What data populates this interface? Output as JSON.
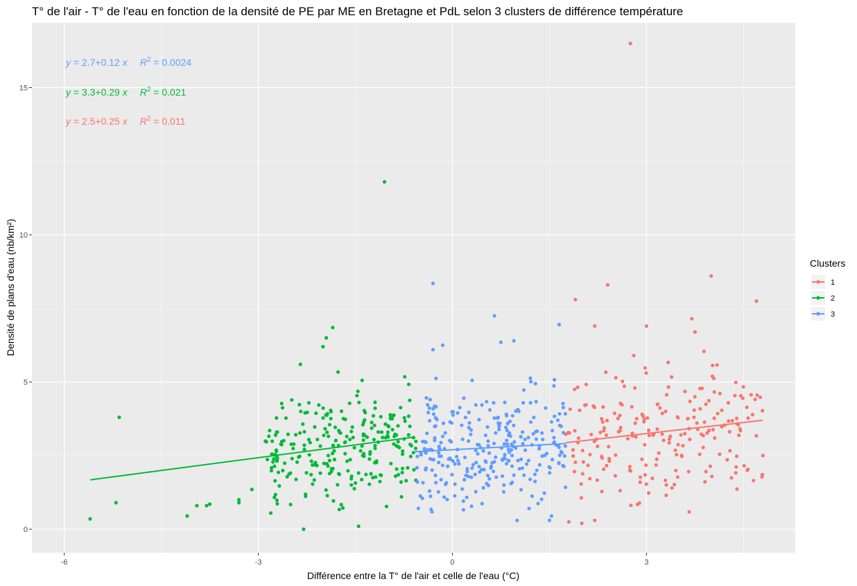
{
  "chart_data": {
    "type": "scatter",
    "title": "T° de l'air - T° de l'eau en fonction de la densité de PE par ME en Bretagne et PdL selon 3 clusters de différence température",
    "xlabel": "Différence entre la T° de l'air et celle de l'eau (°C)",
    "ylabel": "Densité de plans d'eau (nb/km²)",
    "xlim": [
      -6.5,
      5.3
    ],
    "ylim": [
      -0.8,
      17.2
    ],
    "x_ticks": [
      -6,
      -3,
      0,
      3
    ],
    "x_tick_labels": [
      "-6",
      "-3",
      "0",
      "3"
    ],
    "y_ticks": [
      0,
      5,
      10,
      15
    ],
    "y_tick_labels": [
      "0",
      "5",
      "10",
      "15"
    ],
    "grid": true,
    "legend": {
      "title": "Clusters",
      "placement": "right"
    },
    "series": [
      {
        "name": "1",
        "color": "#F8766D",
        "fit": {
          "slope": 0.25,
          "intercept": 2.5,
          "x_range": [
            1.75,
            4.8
          ]
        },
        "equation": {
          "lhs": "y",
          "rhs": "2.5+0.25 x",
          "r2_label": "R",
          "r2_sup": "2",
          "r2_value": "= 0.011"
        },
        "points_seed": 101,
        "points_count": 215,
        "points_x_range": [
          1.75,
          4.8
        ],
        "points_y_range": [
          0.2,
          6.9
        ],
        "points": [
          [
            2.75,
            16.5
          ],
          [
            4.0,
            8.6
          ],
          [
            2.4,
            8.3
          ],
          [
            4.7,
            7.75
          ],
          [
            1.9,
            7.8
          ],
          [
            3.7,
            7.15
          ],
          [
            3.75,
            6.7
          ],
          [
            3.0,
            6.9
          ],
          [
            2.2,
            6.9
          ],
          [
            4.8,
            2.5
          ],
          [
            2.0,
            0.2
          ],
          [
            2.2,
            0.3
          ],
          [
            1.8,
            0.25
          ]
        ]
      },
      {
        "name": "2",
        "color": "#00BA38",
        "fit": {
          "slope": 0.29,
          "intercept": 3.3,
          "x_range": [
            -5.6,
            -0.6
          ]
        },
        "equation": {
          "lhs": "y",
          "rhs": "3.3+0.29 x",
          "r2_label": "R",
          "r2_sup": "2",
          "r2_value": "= 0.021"
        },
        "points_seed": 202,
        "points_count": 255,
        "points_x_range": [
          -2.9,
          -0.55
        ],
        "points_y_range": [
          0.1,
          5.6
        ],
        "points": [
          [
            -1.05,
            11.8
          ],
          [
            -1.85,
            6.85
          ],
          [
            -1.95,
            6.5
          ],
          [
            -5.6,
            0.35
          ],
          [
            -5.2,
            0.9
          ],
          [
            -5.15,
            3.8
          ],
          [
            -4.1,
            0.45
          ],
          [
            -3.95,
            0.8
          ],
          [
            -3.8,
            0.8
          ],
          [
            -3.75,
            0.85
          ],
          [
            -3.3,
            0.9
          ],
          [
            -3.3,
            1.0
          ],
          [
            -3.1,
            1.35
          ],
          [
            -2.3,
            0.0
          ],
          [
            -1.45,
            0.1
          ],
          [
            -2.35,
            5.6
          ],
          [
            -2.0,
            6.2
          ]
        ]
      },
      {
        "name": "3",
        "color": "#619CFF",
        "fit": {
          "slope": 0.12,
          "intercept": 2.7,
          "x_range": [
            -0.6,
            1.75
          ]
        },
        "equation": {
          "lhs": "y",
          "rhs": "2.7+0.12 x",
          "r2_label": "R",
          "r2_sup": "2",
          "r2_value": "= 0.0024"
        },
        "points_seed": 303,
        "points_count": 285,
        "points_x_range": [
          -0.55,
          1.75
        ],
        "points_y_range": [
          0.3,
          6.4
        ],
        "points": [
          [
            -0.3,
            8.35
          ],
          [
            0.65,
            7.25
          ],
          [
            1.65,
            6.95
          ],
          [
            0.75,
            6.35
          ],
          [
            0.95,
            6.4
          ],
          [
            -0.15,
            6.25
          ],
          [
            -0.3,
            6.1
          ],
          [
            1.0,
            0.3
          ],
          [
            1.5,
            0.3
          ]
        ]
      }
    ]
  }
}
